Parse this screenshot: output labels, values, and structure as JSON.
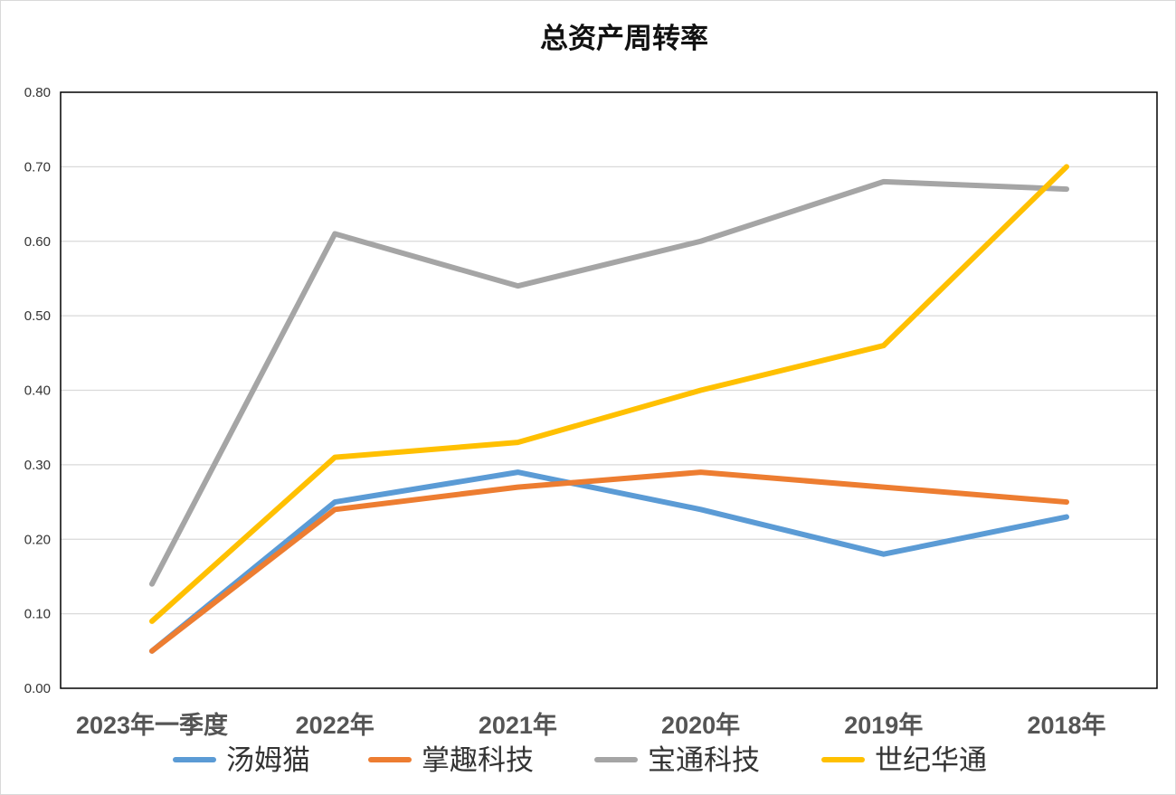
{
  "chart_data": {
    "type": "line",
    "title": "总资产周转率",
    "xlabel": "",
    "ylabel": "",
    "categories": [
      "2023年一季度",
      "2022年",
      "2021年",
      "2020年",
      "2019年",
      "2018年"
    ],
    "ylim": [
      0,
      0.8
    ],
    "yticks": [
      "0.00",
      "0.10",
      "0.20",
      "0.30",
      "0.40",
      "0.50",
      "0.60",
      "0.70",
      "0.80"
    ],
    "grid": true,
    "legend_position": "bottom",
    "series": [
      {
        "name": "汤姆猫",
        "color": "#5b9bd5",
        "values": [
          0.05,
          0.25,
          0.29,
          0.24,
          0.18,
          0.23
        ]
      },
      {
        "name": "掌趣科技",
        "color": "#ed7d31",
        "values": [
          0.05,
          0.24,
          0.27,
          0.29,
          0.27,
          0.25
        ]
      },
      {
        "name": "宝通科技",
        "color": "#a5a5a5",
        "values": [
          0.14,
          0.61,
          0.54,
          0.6,
          0.68,
          0.67
        ]
      },
      {
        "name": "世纪华通",
        "color": "#ffc000",
        "values": [
          0.09,
          0.31,
          0.33,
          0.4,
          0.46,
          0.7
        ]
      }
    ]
  }
}
